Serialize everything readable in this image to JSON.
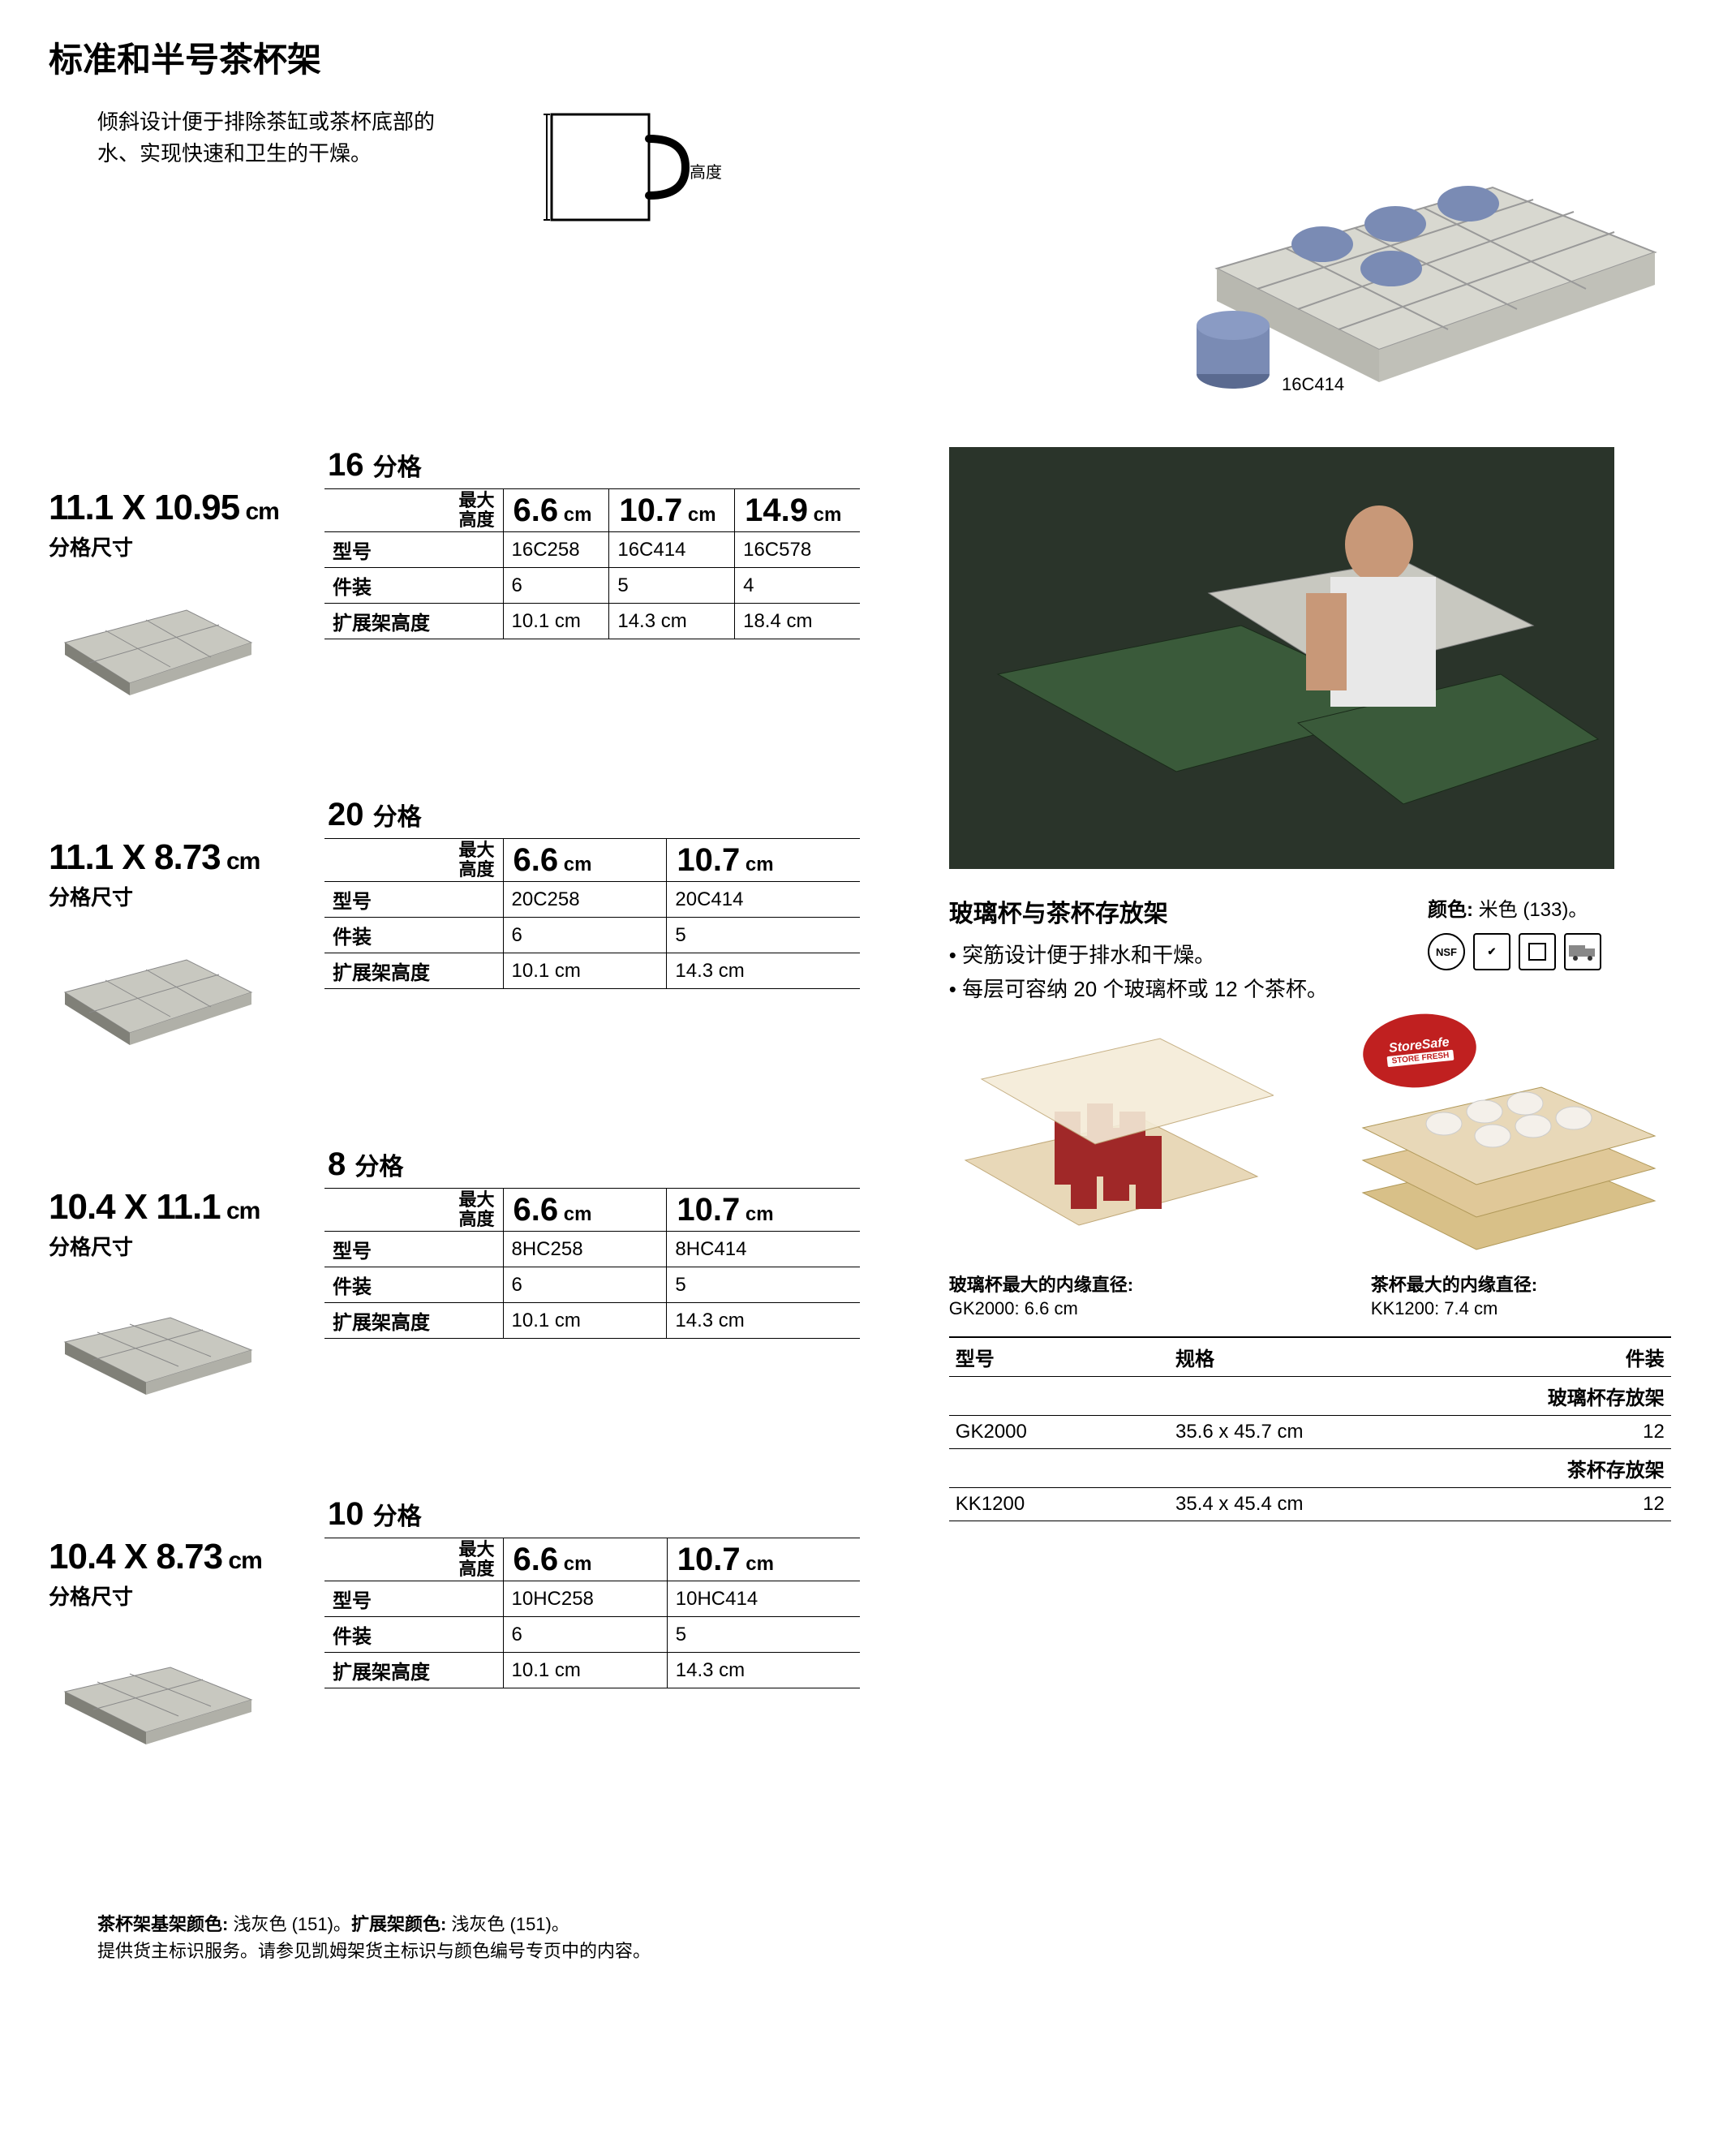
{
  "page_title": "标准和半号茶杯架",
  "intro_text": "倾斜设计便于排除茶缸或茶杯底部的水、实现快速和卫生的干燥。",
  "cup_label": "高度",
  "hero_label": "16C414",
  "max_height_label": "最大\n高度",
  "row_labels": {
    "model": "型号",
    "case_pack": "件装",
    "ext_height": "扩展架高度"
  },
  "compartments_suffix": "分格",
  "size_label": "分格尺寸",
  "blocks": [
    {
      "compartments": "16",
      "size": "11.1 X 10.95",
      "size_unit": "cm",
      "heights": [
        "6.6",
        "10.7",
        "14.9"
      ],
      "height_unit": "cm",
      "models": [
        "16C258",
        "16C414",
        "16C578"
      ],
      "packs": [
        "6",
        "5",
        "4"
      ],
      "ext": [
        "10.1 cm",
        "14.3 cm",
        "18.4 cm"
      ]
    },
    {
      "compartments": "20",
      "size": "11.1 X 8.73",
      "size_unit": "cm",
      "heights": [
        "6.6",
        "10.7"
      ],
      "height_unit": "cm",
      "models": [
        "20C258",
        "20C414"
      ],
      "packs": [
        "6",
        "5"
      ],
      "ext": [
        "10.1 cm",
        "14.3 cm"
      ]
    },
    {
      "compartments": "8",
      "size": "10.4 X 11.1",
      "size_unit": "cm",
      "heights": [
        "6.6",
        "10.7"
      ],
      "height_unit": "cm",
      "models": [
        "8HC258",
        "8HC414"
      ],
      "packs": [
        "6",
        "5"
      ],
      "ext": [
        "10.1 cm",
        "14.3 cm"
      ]
    },
    {
      "compartments": "10",
      "size": "10.4 X 8.73",
      "size_unit": "cm",
      "heights": [
        "6.6",
        "10.7"
      ],
      "height_unit": "cm",
      "models": [
        "10HC258",
        "10HC414"
      ],
      "packs": [
        "6",
        "5"
      ],
      "ext": [
        "10.1 cm",
        "14.3 cm"
      ]
    }
  ],
  "storage": {
    "title": "玻璃杯与茶杯存放架",
    "bullets": [
      "突筋设计便于排水和干燥。",
      "每层可容纳 20 个玻璃杯或 12 个茶杯。"
    ],
    "color_label": "颜色:",
    "color_value": "米色 (133)。",
    "badge_top": "StoreSafe",
    "badge_bottom": "STORE FRESH",
    "caption1_title": "玻璃杯最大的内缘直径:",
    "caption1_val": "GK2000: 6.6 cm",
    "caption2_title": "茶杯最大的内缘直径:",
    "caption2_val": "KK1200: 7.4 cm",
    "table_headers": [
      "型号",
      "规格",
      "件装"
    ],
    "cat1": "玻璃杯存放架",
    "row1": [
      "GK2000",
      "35.6 x 45.7 cm",
      "12"
    ],
    "cat2": "茶杯存放架",
    "row2": [
      "KK1200",
      "35.4 x 45.4 cm",
      "12"
    ]
  },
  "footnote_bold1": "茶杯架基架颜色:",
  "footnote_val1": "浅灰色 (151)。",
  "footnote_bold2": "扩展架颜色:",
  "footnote_val2": "浅灰色 (151)。",
  "footnote_line2": "提供货主标识服务。请参见凯姆架货主标识与颜色编号专页中的内容。",
  "icons": {
    "nsf": "NSF",
    "check": "✔",
    "square": "",
    "truck": ""
  },
  "colors": {
    "rack_gray": "#c8c8c0",
    "rack_shadow": "#808078",
    "cup_blue": "#7a8bb4",
    "tray_beige": "#e8d8b8",
    "tumbler_red": "#a02828",
    "mug_white": "#f4f0ea"
  }
}
